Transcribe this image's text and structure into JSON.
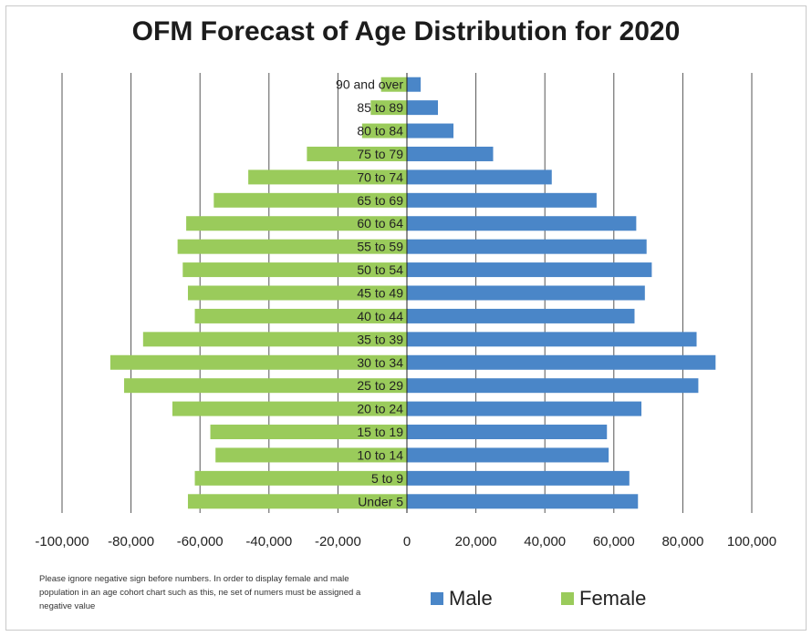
{
  "colors": {
    "male": "#4a86c8",
    "female": "#9acb5b",
    "grid": "#555555",
    "axis": "#222222"
  },
  "chart_data": {
    "type": "bar",
    "orientation": "horizontal",
    "title": "OFM Forecast of Age Distribution for 2020",
    "categories": [
      "90 and over",
      "85 to 89",
      "80 to 84",
      "75 to 79",
      "70 to 74",
      "65 to 69",
      "60 to 64",
      "55 to 59",
      "50 to 54",
      "45 to 49",
      "40 to 44",
      "35 to 39",
      "30 to 34",
      "25 to 29",
      "20 to 24",
      "15 to 19",
      "10 to 14",
      "5 to 9",
      "Under 5"
    ],
    "series": [
      {
        "name": "Male",
        "values": [
          4000,
          9000,
          13500,
          25000,
          42000,
          55000,
          66500,
          69500,
          71000,
          69000,
          66000,
          84000,
          89500,
          84500,
          68000,
          58000,
          58500,
          64500,
          67000
        ]
      },
      {
        "name": "Female",
        "values": [
          -7500,
          -10500,
          -13000,
          -29000,
          -46000,
          -56000,
          -64000,
          -66500,
          -65000,
          -63500,
          -61500,
          -76500,
          -86000,
          -82000,
          -68000,
          -57000,
          -55500,
          -61500,
          -63500
        ]
      }
    ],
    "xlim": [
      -100000,
      100000
    ],
    "xticks": [
      "-100,000",
      "-80,000",
      "-60,000",
      "-40,000",
      "-20,000",
      "0",
      "20,000",
      "40,000",
      "60,000",
      "80,000",
      "100,000"
    ],
    "grid": true,
    "legend_position": "bottom-right"
  },
  "legend": {
    "male_label": "Male",
    "female_label": "Female"
  },
  "note": "Please ignore negative sign before numbers. In order to display female and male population in an age cohort chart such as this, ne set of numers must be assigned a negative value"
}
